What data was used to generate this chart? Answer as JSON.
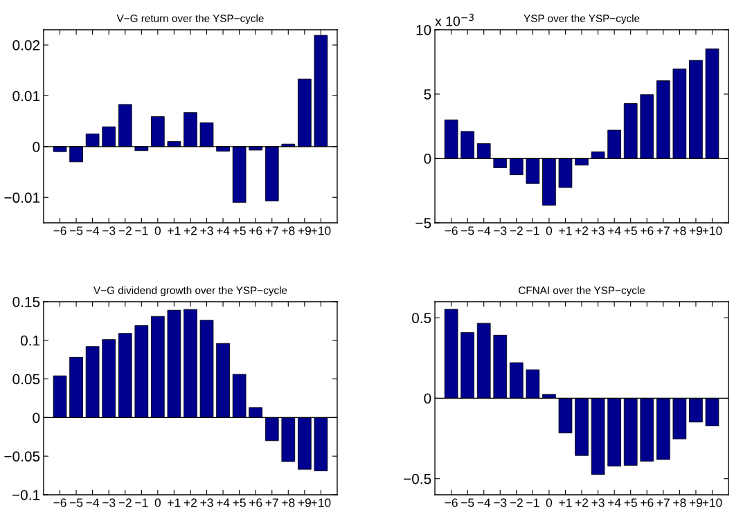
{
  "chart_data": [
    {
      "type": "bar",
      "title": "V−G return over the YSP−cycle",
      "categories": [
        "−6",
        "−5",
        "−4",
        "−3",
        "−2",
        "−1",
        "0",
        "+1",
        "+2",
        "+3",
        "+4",
        "+5",
        "+6",
        "+7",
        "+8",
        "+9",
        "+10"
      ],
      "series": [
        {
          "color": "#00008f",
          "values": [
            -0.001,
            -0.003,
            0.0025,
            0.0039,
            0.0083,
            -0.0008,
            0.0059,
            0.001,
            0.0067,
            0.0047,
            -0.0009,
            -0.011,
            -0.0007,
            -0.0107,
            0.0005,
            0.0133,
            0.0219
          ]
        }
      ],
      "ylim": [
        -0.015,
        0.023
      ],
      "yticks": [
        {
          "value": -0.01,
          "label": "−0.01"
        },
        0,
        0.01,
        0.02
      ],
      "ref_lines": [
        {
          "axis": "y",
          "value": 0,
          "color": "#000000"
        }
      ],
      "grid": false,
      "legend": false
    },
    {
      "type": "bar",
      "title": "YSP over the YSP−cycle",
      "annotations": [
        "x 10$^{−3}$"
      ],
      "categories": [
        "−6",
        "−5",
        "−4",
        "−3",
        "−2",
        "−1",
        "0",
        "+1",
        "+2",
        "+3",
        "+4",
        "+5",
        "+6",
        "+7",
        "+8",
        "+9",
        "+10"
      ],
      "series": [
        {
          "color": "#00008f",
          "values": [
            3.0,
            2.1,
            1.16,
            -0.72,
            -1.27,
            -1.95,
            -3.64,
            -2.26,
            -0.52,
            0.52,
            2.2,
            4.27,
            4.96,
            6.04,
            6.95,
            7.62,
            8.51
          ]
        }
      ],
      "ylim": [
        -5,
        10
      ],
      "yticks": [
        {
          "value": -5,
          "label": "−5"
        },
        0,
        5,
        10
      ],
      "ref_lines": [
        {
          "axis": "y",
          "value": 0,
          "color": "#000000"
        }
      ],
      "grid": false,
      "legend": false
    },
    {
      "type": "bar",
      "title": "V−G dividend growth over the YSP−cycle",
      "categories": [
        "−6",
        "−5",
        "−4",
        "−3",
        "−2",
        "−1",
        "0",
        "+1",
        "+2",
        "+3",
        "+4",
        "+5",
        "+6",
        "+7",
        "+8",
        "+9",
        "+10"
      ],
      "series": [
        {
          "color": "#00008f",
          "values": [
            0.054,
            0.078,
            0.092,
            0.101,
            0.109,
            0.119,
            0.131,
            0.139,
            0.14,
            0.126,
            0.096,
            0.056,
            0.013,
            -0.03,
            -0.057,
            -0.067,
            -0.069
          ]
        }
      ],
      "ylim": [
        -0.1,
        0.15
      ],
      "yticks": [
        {
          "value": -0.1,
          "label": "−0.1"
        },
        {
          "value": -0.05,
          "label": "−0.05"
        },
        0,
        0.05,
        0.1,
        0.15
      ],
      "ref_lines": [
        {
          "axis": "y",
          "value": 0,
          "color": "#000000"
        }
      ],
      "grid": false,
      "legend": false
    },
    {
      "type": "bar",
      "title": "CFNAI over the YSP−cycle",
      "categories": [
        "−6",
        "−5",
        "−4",
        "−3",
        "−2",
        "−1",
        "0",
        "+1",
        "+2",
        "+3",
        "+4",
        "+5",
        "+6",
        "+7",
        "+8",
        "+9",
        "+10"
      ],
      "series": [
        {
          "color": "#00008f",
          "values": [
            0.553,
            0.408,
            0.466,
            0.392,
            0.221,
            0.177,
            0.024,
            -0.216,
            -0.356,
            -0.474,
            -0.422,
            -0.417,
            -0.392,
            -0.381,
            -0.253,
            -0.148,
            -0.172
          ]
        }
      ],
      "ylim": [
        -0.6,
        0.6
      ],
      "yticks": [
        {
          "value": -0.5,
          "label": "−0.5"
        },
        0,
        0.5
      ],
      "ref_lines": [
        {
          "axis": "y",
          "value": 0,
          "color": "#000000"
        }
      ],
      "grid": false,
      "legend": false
    }
  ]
}
